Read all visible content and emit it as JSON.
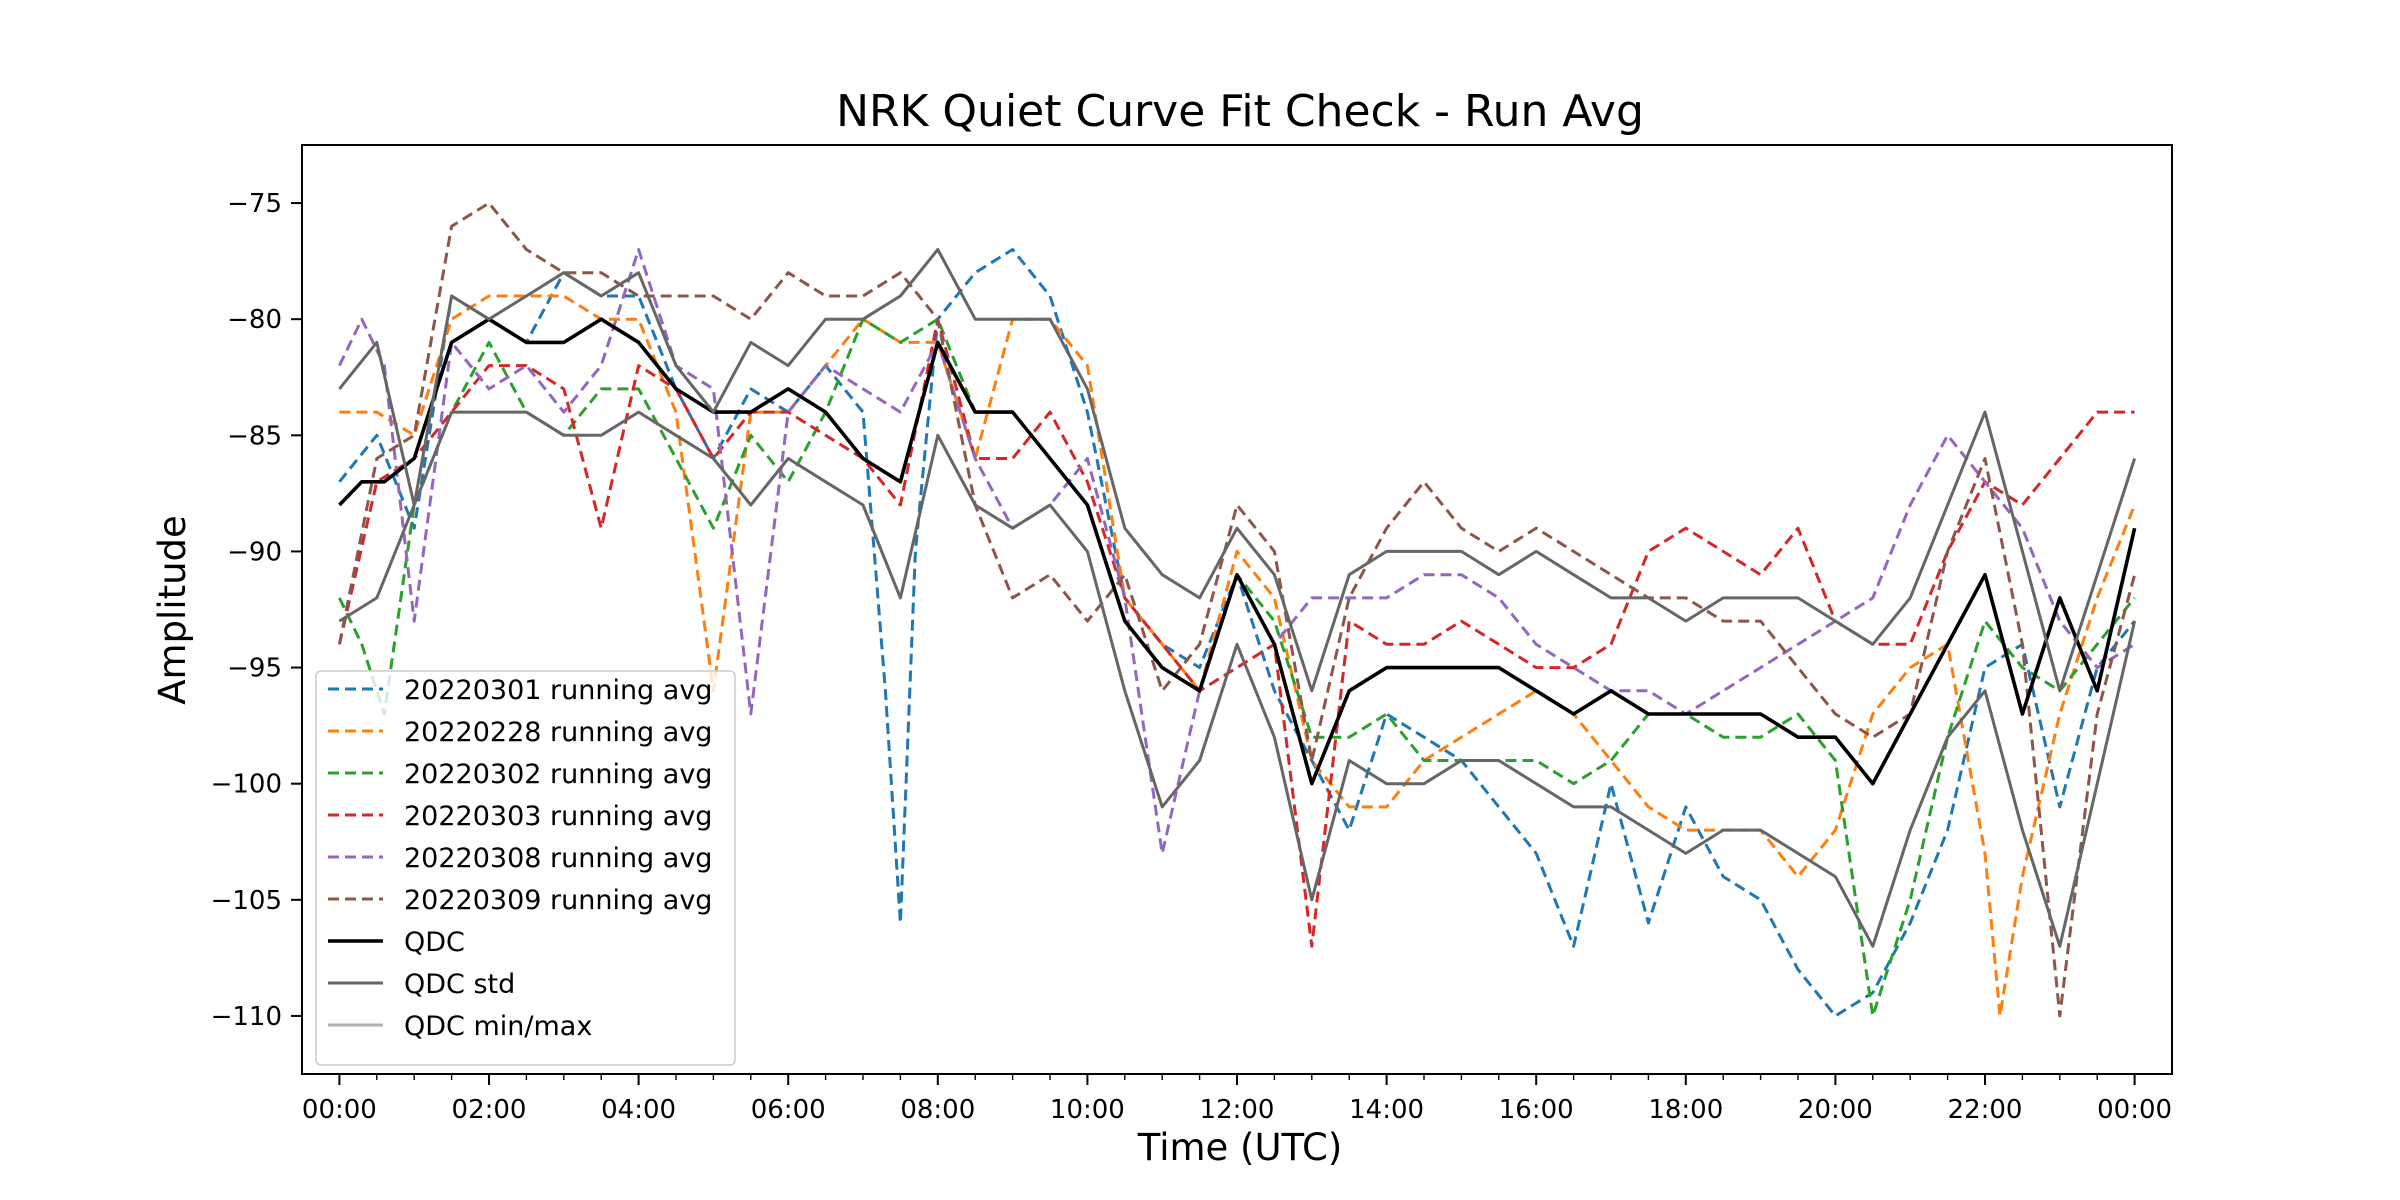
{
  "chart_data": {
    "type": "line",
    "title": "NRK Quiet Curve Fit Check - Run Avg",
    "xlabel": "Time (UTC)",
    "ylabel": "Amplitude",
    "xlim": [
      -0.5,
      24.5
    ],
    "ylim": [
      -112.5,
      -72.5
    ],
    "x_tick_labels": [
      "00:00",
      "02:00",
      "04:00",
      "06:00",
      "08:00",
      "10:00",
      "12:00",
      "14:00",
      "16:00",
      "18:00",
      "20:00",
      "22:00",
      "00:00"
    ],
    "y_ticks": [
      -75,
      -80,
      -85,
      -90,
      -95,
      -100,
      -105,
      -110
    ],
    "y_tick_labels": [
      "−75",
      "−80",
      "−85",
      "−90",
      "−95",
      "−100",
      "−105",
      "−110"
    ],
    "grid": false,
    "legend_position": "lower left",
    "series": [
      {
        "name": "20220301 running avg",
        "color": "#1f77b4",
        "style": "dashed",
        "x": [
          0,
          0.5,
          1,
          1.5,
          2,
          2.5,
          3,
          3.5,
          4,
          4.5,
          5,
          5.5,
          6,
          6.5,
          7,
          7.3,
          7.5,
          7.7,
          8,
          8.5,
          9,
          9.5,
          10,
          10.5,
          11,
          11.5,
          12,
          12.5,
          13,
          13.5,
          14,
          14.5,
          15,
          15.5,
          16,
          16.5,
          17,
          17.5,
          18,
          18.5,
          19,
          19.5,
          20,
          20.5,
          21,
          21.5,
          22,
          22.5,
          23,
          23.5,
          24
        ],
        "y": [
          -87,
          -85,
          -89,
          -79,
          -80,
          -81,
          -78,
          -79,
          -79,
          -83,
          -86,
          -83,
          -84,
          -82,
          -84,
          -96,
          -106,
          -90,
          -80,
          -78,
          -77,
          -79,
          -84,
          -92,
          -94,
          -95,
          -91,
          -96,
          -99,
          -102,
          -97,
          -98,
          -99,
          -101,
          -103,
          -107,
          -100,
          -106,
          -101,
          -104,
          -105,
          -108,
          -110,
          -109,
          -106,
          -102,
          -95,
          -94,
          -101,
          -95,
          -93
        ]
      },
      {
        "name": "20220228 running avg",
        "color": "#ff7f0e",
        "style": "dashed",
        "x": [
          0,
          0.5,
          1,
          1.5,
          2,
          2.5,
          3,
          3.5,
          4,
          4.5,
          5,
          5.5,
          6,
          6.5,
          7,
          7.5,
          8,
          8.5,
          9,
          9.5,
          10,
          10.5,
          11,
          11.5,
          12,
          12.5,
          13,
          13.5,
          14,
          14.5,
          15,
          15.5,
          16,
          16.5,
          17,
          17.5,
          18,
          18.5,
          19,
          19.5,
          20,
          20.5,
          21,
          21.5,
          22,
          22.2,
          22.5,
          23,
          23.5,
          24
        ],
        "y": [
          -84,
          -84,
          -85,
          -80,
          -79,
          -79,
          -79,
          -80,
          -80,
          -84,
          -96,
          -84,
          -84,
          -82,
          -80,
          -81,
          -81,
          -86,
          -80,
          -80,
          -82,
          -92,
          -94,
          -96,
          -90,
          -92,
          -99,
          -101,
          -101,
          -99,
          -98,
          -97,
          -96,
          -97,
          -99,
          -101,
          -102,
          -102,
          -102,
          -104,
          -102,
          -97,
          -95,
          -94,
          -103,
          -110,
          -104,
          -97,
          -92,
          -88
        ]
      },
      {
        "name": "20220302 running avg",
        "color": "#2ca02c",
        "style": "dashed",
        "x": [
          0,
          0.3,
          0.6,
          1,
          1.5,
          2,
          2.5,
          3,
          3.5,
          4,
          4.5,
          5,
          5.5,
          6,
          6.5,
          7,
          7.5,
          8,
          8.5,
          9,
          9.5,
          10,
          10.5,
          11,
          11.5,
          12,
          12.5,
          13,
          13.5,
          14,
          14.5,
          15,
          15.5,
          16,
          16.5,
          17,
          17.5,
          18,
          18.5,
          19,
          19.5,
          20,
          20.5,
          21,
          21.5,
          22,
          22.5,
          23,
          23.5,
          24
        ],
        "y": [
          -92,
          -94,
          -97,
          -88,
          -84,
          -81,
          -84,
          -85,
          -83,
          -83,
          -86,
          -89,
          -85,
          -87,
          -84,
          -80,
          -81,
          -80,
          -84,
          -84,
          -86,
          -88,
          -93,
          -95,
          -96,
          -91,
          -93,
          -98,
          -98,
          -97,
          -99,
          -99,
          -99,
          -99,
          -100,
          -99,
          -97,
          -97,
          -98,
          -98,
          -97,
          -99,
          -110,
          -105,
          -98,
          -93,
          -95,
          -96,
          -94,
          -92
        ]
      },
      {
        "name": "20220303 running avg",
        "color": "#d62728",
        "style": "dashed",
        "x": [
          0,
          0.5,
          1,
          1.5,
          2,
          2.5,
          3,
          3.5,
          4,
          4.5,
          5,
          5.5,
          6,
          6.5,
          7,
          7.5,
          8,
          8.5,
          9,
          9.5,
          10,
          10.5,
          11,
          11.5,
          12,
          12.5,
          13,
          13.5,
          14,
          14.5,
          15,
          15.5,
          16,
          16.5,
          17,
          17.5,
          18,
          18.5,
          19,
          19.5,
          20,
          20.5,
          21,
          21.5,
          22,
          22.5,
          23,
          23.5,
          24
        ],
        "y": [
          -94,
          -87,
          -86,
          -84,
          -82,
          -82,
          -83,
          -89,
          -82,
          -83,
          -86,
          -84,
          -84,
          -85,
          -86,
          -88,
          -80,
          -86,
          -86,
          -84,
          -87,
          -92,
          -94,
          -96,
          -95,
          -94,
          -107,
          -93,
          -94,
          -94,
          -93,
          -94,
          -95,
          -95,
          -94,
          -90,
          -89,
          -90,
          -91,
          -89,
          -93,
          -94,
          -94,
          -90,
          -87,
          -88,
          -86,
          -84,
          -84
        ]
      },
      {
        "name": "20220308 running avg",
        "color": "#9467bd",
        "style": "dashed",
        "x": [
          0,
          0.3,
          0.6,
          1,
          1.5,
          2,
          2.5,
          3,
          3.5,
          4,
          4.5,
          5,
          5.5,
          6,
          6.5,
          7,
          7.5,
          8,
          8.5,
          9,
          9.5,
          10,
          10.5,
          11,
          11.5,
          12,
          12.5,
          13,
          13.5,
          14,
          14.5,
          15,
          15.5,
          16,
          16.5,
          17,
          17.5,
          18,
          18.5,
          19,
          19.5,
          20,
          20.5,
          21,
          21.5,
          22,
          22.5,
          23,
          23.5,
          24
        ],
        "y": [
          -82,
          -80,
          -82,
          -93,
          -81,
          -83,
          -82,
          -84,
          -82,
          -77,
          -82,
          -83,
          -97,
          -84,
          -82,
          -83,
          -84,
          -81,
          -86,
          -89,
          -88,
          -86,
          -92,
          -103,
          -96,
          -91,
          -94,
          -92,
          -92,
          -92,
          -91,
          -91,
          -92,
          -94,
          -95,
          -96,
          -96,
          -97,
          -96,
          -95,
          -94,
          -93,
          -92,
          -88,
          -85,
          -87,
          -89,
          -93,
          -95,
          -94
        ]
      },
      {
        "name": "20220309 running avg",
        "color": "#8c564b",
        "style": "dashed",
        "x": [
          0,
          0.5,
          1,
          1.5,
          2,
          2.5,
          3,
          3.5,
          4,
          4.5,
          5,
          5.5,
          6,
          6.5,
          7,
          7.5,
          8,
          8.5,
          9,
          9.5,
          10,
          10.5,
          11,
          11.5,
          12,
          12.5,
          13,
          13.5,
          14,
          14.5,
          15,
          15.5,
          16,
          16.5,
          17,
          17.5,
          18,
          18.5,
          19,
          19.5,
          20,
          20.5,
          21,
          21.5,
          22,
          22.5,
          23,
          23.5,
          24
        ],
        "y": [
          -94,
          -86,
          -85,
          -76,
          -75,
          -77,
          -78,
          -78,
          -79,
          -79,
          -79,
          -80,
          -78,
          -79,
          -79,
          -78,
          -80,
          -88,
          -92,
          -91,
          -93,
          -91,
          -96,
          -94,
          -88,
          -90,
          -99,
          -92,
          -89,
          -87,
          -89,
          -90,
          -89,
          -90,
          -91,
          -92,
          -92,
          -93,
          -93,
          -95,
          -97,
          -98,
          -97,
          -90,
          -86,
          -94,
          -110,
          -97,
          -91
        ]
      },
      {
        "name": "QDC",
        "color": "#000000",
        "style": "solid",
        "x": [
          0,
          0.3,
          0.6,
          1,
          1.5,
          2,
          2.5,
          3,
          3.5,
          4,
          4.5,
          5,
          5.5,
          6,
          6.5,
          7,
          7.5,
          8,
          8.5,
          9,
          9.5,
          10,
          10.5,
          11,
          11.5,
          12,
          12.5,
          13,
          13.5,
          14,
          14.5,
          15,
          15.5,
          16,
          16.5,
          17,
          17.5,
          18,
          18.5,
          19,
          19.5,
          20,
          20.5,
          21,
          21.5,
          22,
          22.5,
          23,
          23.5,
          24
        ],
        "y": [
          -88,
          -87,
          -87,
          -86,
          -81,
          -80,
          -81,
          -81,
          -80,
          -81,
          -83,
          -84,
          -84,
          -83,
          -84,
          -86,
          -87,
          -81,
          -84,
          -84,
          -86,
          -88,
          -93,
          -95,
          -96,
          -91,
          -94,
          -100,
          -96,
          -95,
          -95,
          -95,
          -95,
          -96,
          -97,
          -96,
          -97,
          -97,
          -97,
          -97,
          -98,
          -98,
          -100,
          -97,
          -94,
          -91,
          -97,
          -92,
          -96,
          -89
        ]
      },
      {
        "name": "QDC std",
        "color": "#666666",
        "style": "solid",
        "x": [
          0,
          0.5,
          1,
          1.5,
          2,
          2.5,
          3,
          3.5,
          4,
          4.5,
          5,
          5.5,
          6,
          6.5,
          7,
          7.5,
          8,
          8.5,
          9,
          9.5,
          10,
          10.5,
          11,
          11.5,
          12,
          12.5,
          13,
          13.5,
          14,
          14.5,
          15,
          15.5,
          16,
          16.5,
          17,
          17.5,
          18,
          18.5,
          19,
          19.5,
          20,
          20.5,
          21,
          21.5,
          22,
          22.5,
          23,
          23.5,
          24
        ],
        "y": [
          -83,
          -81,
          -88,
          -79,
          -80,
          -79,
          -78,
          -79,
          -78,
          -82,
          -84,
          -81,
          -82,
          -80,
          -80,
          -79,
          -77,
          -80,
          -80,
          -80,
          -83,
          -89,
          -91,
          -92,
          -89,
          -91,
          -96,
          -91,
          -90,
          -90,
          -90,
          -91,
          -90,
          -91,
          -92,
          -92,
          -93,
          -92,
          -92,
          -92,
          -93,
          -94,
          -92,
          -88,
          -84,
          -90,
          -96,
          -91,
          -86
        ]
      },
      {
        "name": "QDC std (lower)",
        "color": "#666666",
        "style": "solid",
        "in_legend": false,
        "x": [
          0,
          0.5,
          1,
          1.5,
          2,
          2.5,
          3,
          3.5,
          4,
          4.5,
          5,
          5.5,
          6,
          6.5,
          7,
          7.5,
          8,
          8.5,
          9,
          9.5,
          10,
          10.5,
          11,
          11.5,
          12,
          12.5,
          13,
          13.5,
          14,
          14.5,
          15,
          15.5,
          16,
          16.5,
          17,
          17.5,
          18,
          18.5,
          19,
          19.5,
          20,
          20.5,
          21,
          21.5,
          22,
          22.5,
          23,
          23.5,
          24
        ],
        "y": [
          -93,
          -92,
          -88,
          -84,
          -84,
          -84,
          -85,
          -85,
          -84,
          -85,
          -86,
          -88,
          -86,
          -87,
          -88,
          -92,
          -85,
          -88,
          -89,
          -88,
          -90,
          -96,
          -101,
          -99,
          -94,
          -98,
          -105,
          -99,
          -100,
          -100,
          -99,
          -99,
          -100,
          -101,
          -101,
          -102,
          -103,
          -102,
          -102,
          -103,
          -104,
          -107,
          -102,
          -98,
          -96,
          -102,
          -107,
          -100,
          -93
        ]
      },
      {
        "name": "QDC min/max",
        "color": "#b0b0b0",
        "style": "solid",
        "x": [],
        "y": []
      }
    ]
  }
}
